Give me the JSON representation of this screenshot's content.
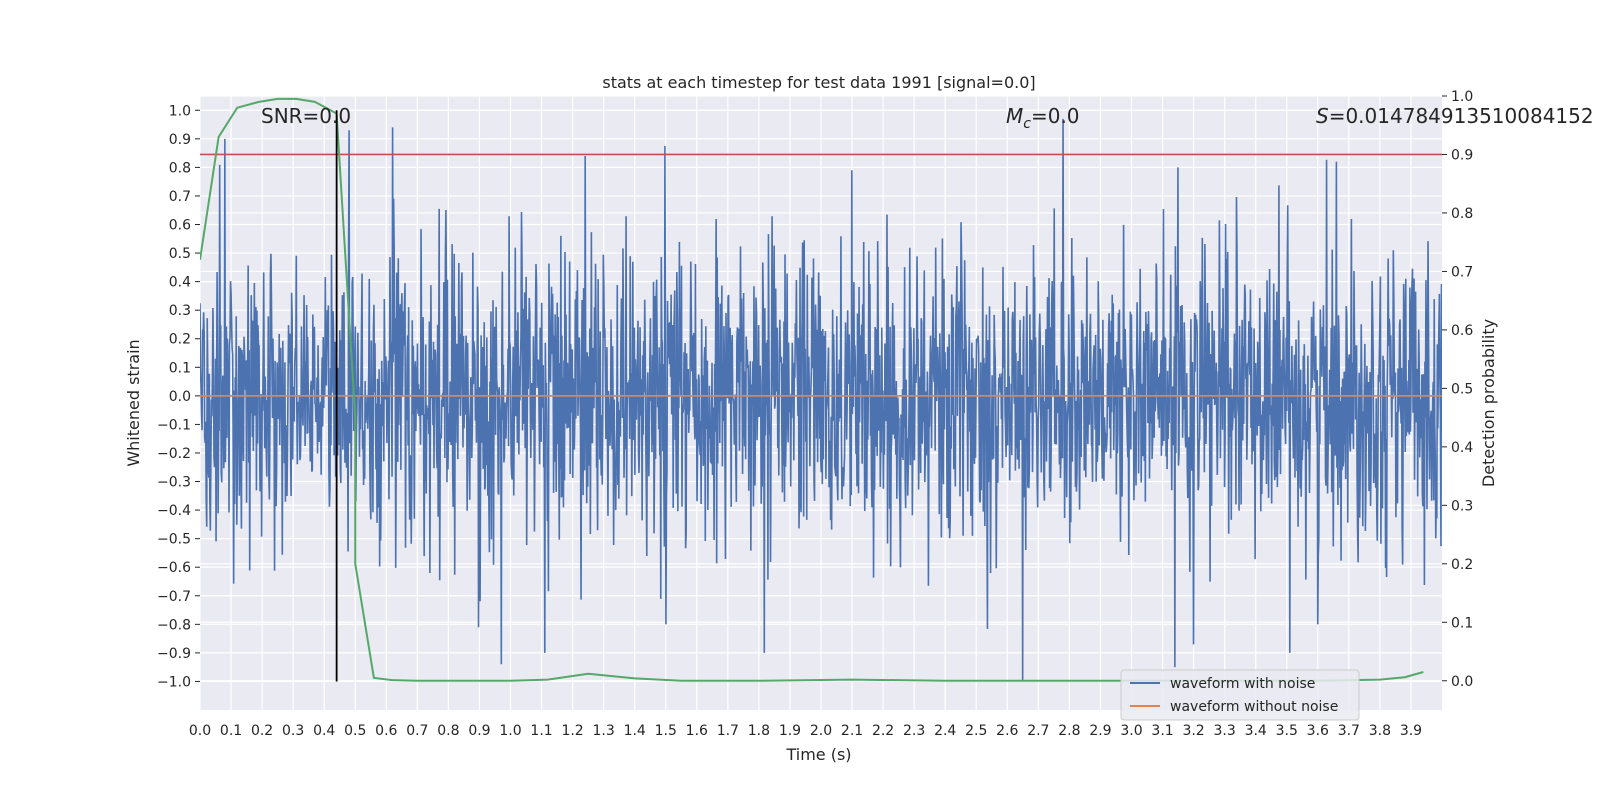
{
  "chart_data": {
    "type": "line",
    "title": "stats at each timestep for test data 1991 [signal=0.0]",
    "xlabel": "Time (s)",
    "ylabel": "Whitened strain",
    "y2label": "Detection probability",
    "xlim": [
      0.0,
      4.0
    ],
    "ylim": [
      -1.1,
      1.05
    ],
    "y2lim": [
      -0.05,
      1.0
    ],
    "x_ticks": [
      0.0,
      0.1,
      0.2,
      0.3,
      0.4,
      0.5,
      0.6,
      0.7,
      0.8,
      0.9,
      1.0,
      1.1,
      1.2,
      1.3,
      1.4,
      1.5,
      1.6,
      1.7,
      1.8,
      1.9,
      2.0,
      2.1,
      2.2,
      2.3,
      2.4,
      2.5,
      2.6,
      2.7,
      2.8,
      2.9,
      3.0,
      3.1,
      3.2,
      3.3,
      3.4,
      3.5,
      3.6,
      3.7,
      3.8,
      3.9
    ],
    "y_ticks": [
      1.0,
      0.9,
      0.8,
      0.7,
      0.6,
      0.5,
      0.4,
      0.3,
      0.2,
      0.1,
      0.0,
      -0.1,
      -0.2,
      -0.3,
      -0.4,
      -0.5,
      -0.6,
      -0.7,
      -0.8,
      -0.9,
      -1.0
    ],
    "y2_ticks": [
      1.0,
      0.9,
      0.8,
      0.7,
      0.6,
      0.5,
      0.4,
      0.3,
      0.2,
      0.1,
      0.0
    ],
    "grid": true,
    "legend_position": "bottom-right",
    "annotations": {
      "snr": "SNR=0.0",
      "mc_symbol": "M",
      "mc_sub": "c",
      "mc_value": "=0.0",
      "s_symbol": "S",
      "s_value": "=0.014784913510084152"
    },
    "series": [
      {
        "name": "waveform with noise",
        "axis": "left",
        "color": "#4c72b0",
        "description": "dense noise trace spanning roughly ±0.5 with spikes up to ±0.95",
        "x_range": [
          0.0,
          4.0
        ],
        "typical_amplitude": 0.45,
        "notable_peaks": [
          [
            0.08,
            0.9
          ],
          [
            0.48,
            0.93
          ],
          [
            0.62,
            0.94
          ],
          [
            1.24,
            0.84
          ],
          [
            2.1,
            0.79
          ],
          [
            2.78,
            0.97
          ],
          [
            3.15,
            0.8
          ],
          [
            3.66,
            0.82
          ]
        ],
        "notable_troughs": [
          [
            0.97,
            -0.94
          ],
          [
            1.5,
            -0.8
          ],
          [
            2.65,
            -1.0
          ],
          [
            3.14,
            -0.95
          ],
          [
            3.2,
            -0.87
          ],
          [
            3.6,
            -0.8
          ]
        ]
      },
      {
        "name": "waveform without noise",
        "axis": "left",
        "color": "#dd8452",
        "x": [
          0.0,
          4.0
        ],
        "values": [
          0.0,
          0.0
        ]
      },
      {
        "name": "",
        "axis": "right",
        "color": "#55a868",
        "x": [
          0.0,
          0.06,
          0.12,
          0.19,
          0.25,
          0.31,
          0.37,
          0.44,
          0.5,
          0.5,
          0.56,
          0.62,
          0.7,
          0.8,
          1.0,
          1.12,
          1.25,
          1.4,
          1.55,
          1.8,
          2.1,
          2.4,
          2.7,
          3.0,
          3.3,
          3.6,
          3.8,
          3.88,
          3.94
        ],
        "values": [
          0.72,
          0.93,
          0.98,
          0.99,
          0.995,
          0.995,
          0.99,
          0.97,
          0.45,
          0.2,
          0.005,
          0.001,
          0.0,
          0.0,
          0.0,
          0.002,
          0.012,
          0.004,
          0.0,
          0.0,
          0.002,
          0.0,
          0.0,
          0.0,
          0.0,
          0.0,
          0.002,
          0.006,
          0.015
        ]
      }
    ],
    "reference_lines": {
      "threshold_right": 0.9,
      "threshold_color": "#c44e52",
      "vertical_x": 0.44,
      "vertical_color": "#000000"
    }
  }
}
